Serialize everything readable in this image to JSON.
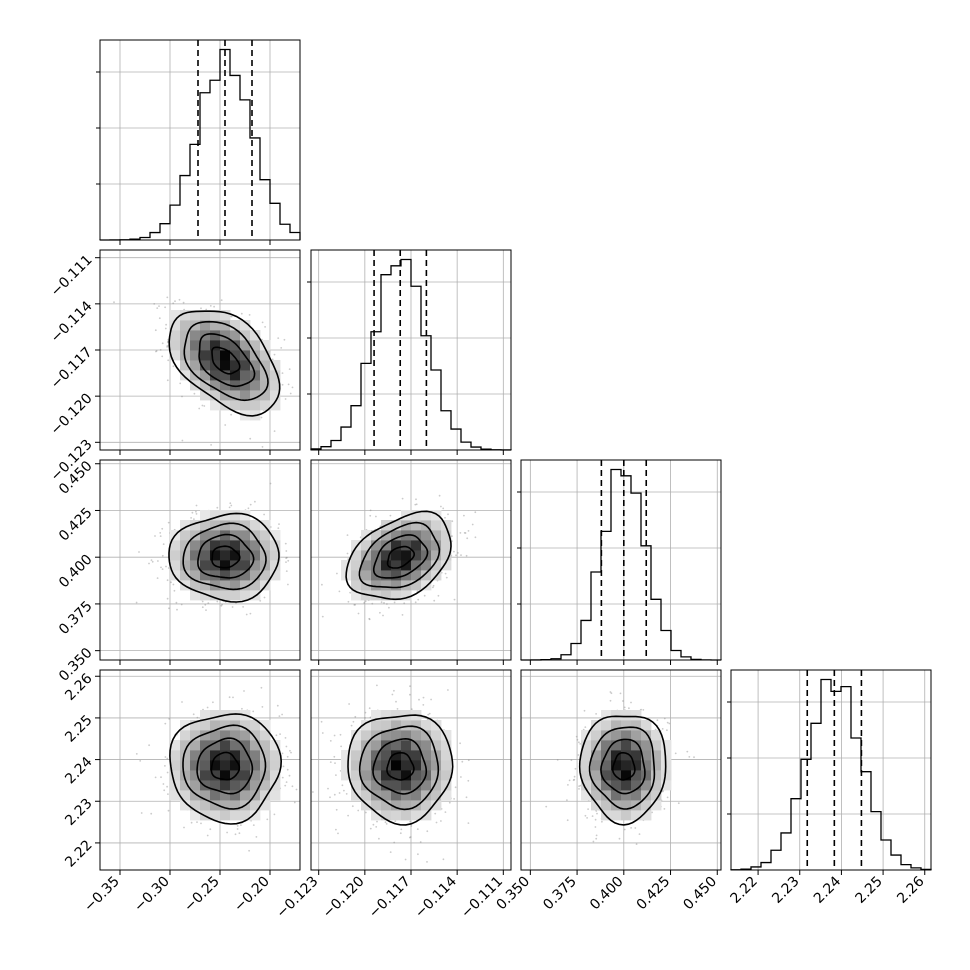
{
  "chart_data": {
    "type": "corner",
    "title": "",
    "n_params": 4,
    "params": [
      {
        "mean": -0.245,
        "sd": 0.0275,
        "range": [
          -0.37,
          -0.17
        ],
        "ticks": [
          -0.35,
          -0.3,
          -0.25,
          -0.2
        ],
        "tick_labels": [
          "−0.35",
          "−0.30",
          "−0.25",
          "−0.20"
        ],
        "quantiles": [
          -0.272,
          -0.245,
          -0.218
        ]
      },
      {
        "mean": -0.1177,
        "sd": 0.0017,
        "range": [
          -0.1235,
          -0.1105
        ],
        "ticks": [
          -0.123,
          -0.12,
          -0.117,
          -0.114,
          -0.111
        ],
        "tick_labels": [
          "−0.123",
          "−0.120",
          "−0.117",
          "−0.114",
          "−0.111"
        ],
        "quantiles": [
          -0.1194,
          -0.1177,
          -0.116
        ]
      },
      {
        "mean": 0.4,
        "sd": 0.0115,
        "range": [
          0.345,
          0.452
        ],
        "ticks": [
          0.35,
          0.375,
          0.4,
          0.425,
          0.45
        ],
        "tick_labels": [
          "0.350",
          "0.375",
          "0.400",
          "0.425",
          "0.450"
        ],
        "quantiles": [
          0.388,
          0.4,
          0.412
        ]
      },
      {
        "mean": 2.2383,
        "sd": 0.0065,
        "range": [
          2.2135,
          2.2615
        ],
        "ticks": [
          2.22,
          2.23,
          2.24,
          2.25,
          2.26
        ],
        "tick_labels": [
          "2.22",
          "2.23",
          "2.24",
          "2.25",
          "2.26"
        ],
        "quantiles": [
          2.2318,
          2.2383,
          2.2448
        ]
      }
    ],
    "correlations": [
      [
        1.0,
        -0.45,
        0.0,
        0.0
      ],
      [
        -0.45,
        1.0,
        0.35,
        0.0
      ],
      [
        0.0,
        0.35,
        1.0,
        0.0
      ],
      [
        0.0,
        0.0,
        0.0,
        1.0
      ]
    ],
    "contour_levels_sigma": [
      0.5,
      1.0,
      1.5,
      2.0
    ],
    "histogram_bins": 20,
    "grid": true,
    "colors": {
      "line": "#000000",
      "grid": "#b0b0b0",
      "scatter": "#8c8c8c"
    }
  }
}
